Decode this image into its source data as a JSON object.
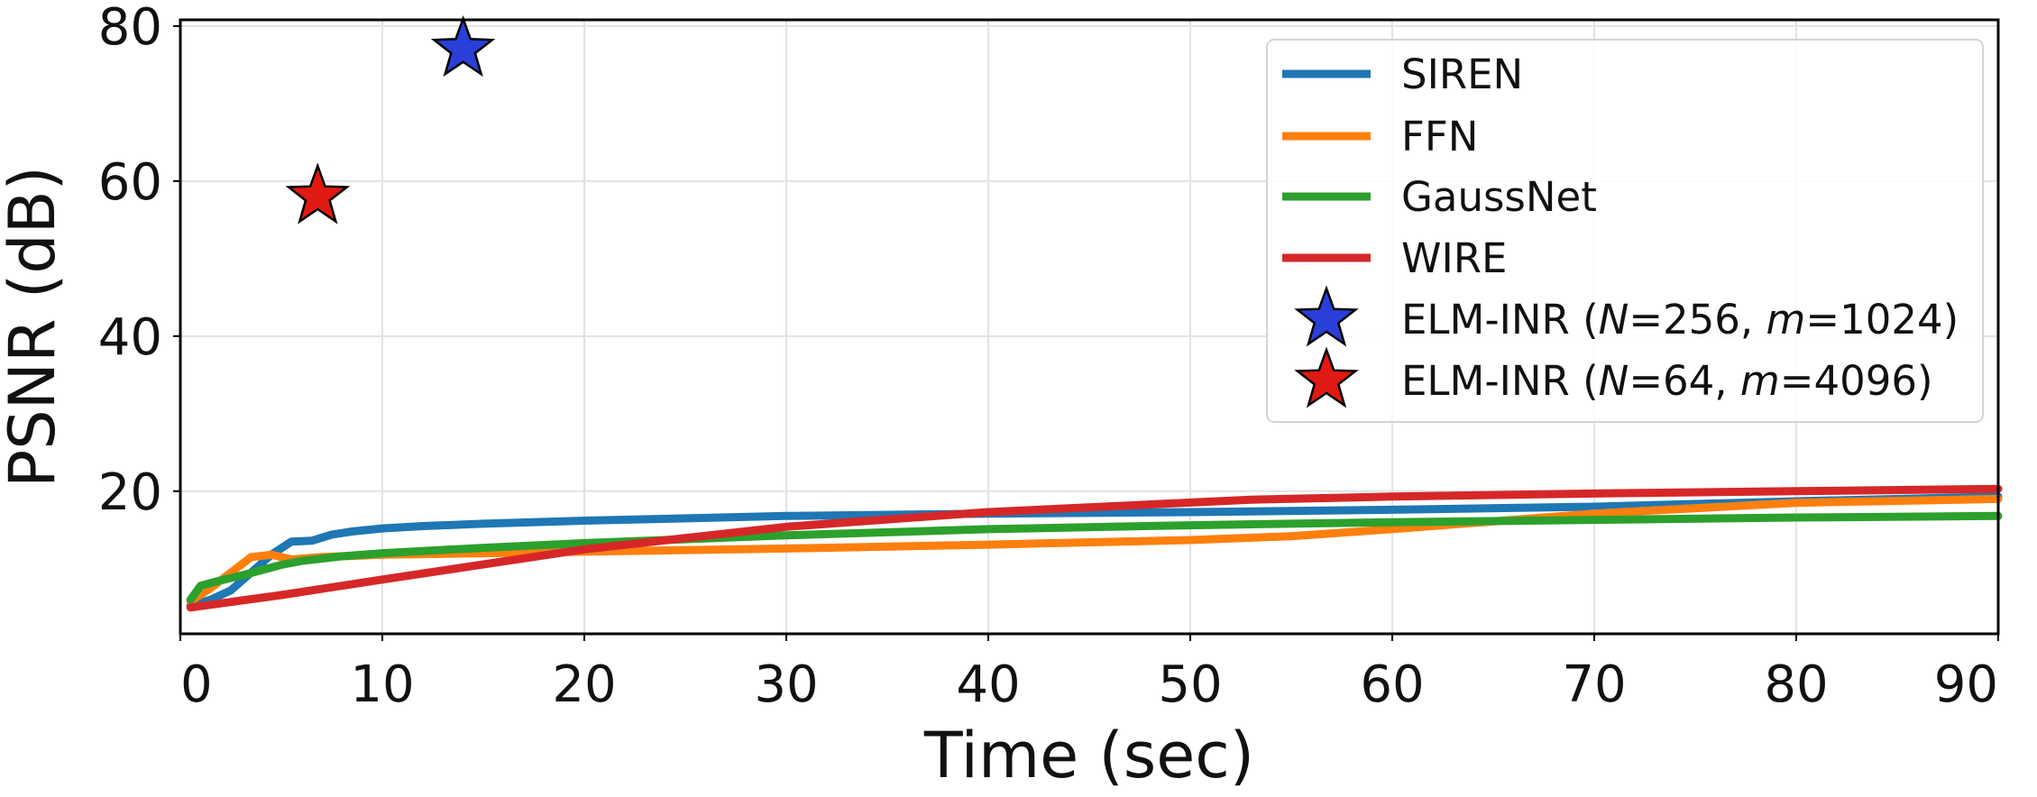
{
  "chart_data": {
    "type": "line",
    "xlabel": "Time (sec)",
    "ylabel": "PSNR (dB)",
    "xlim": [
      0,
      90
    ],
    "ylim": [
      1.6,
      80.8
    ],
    "xticks": [
      0,
      10,
      20,
      30,
      40,
      50,
      60,
      70,
      80,
      90
    ],
    "yticks": [
      20,
      40,
      60,
      80
    ],
    "grid": true,
    "legend_position": "top-right",
    "series": [
      {
        "name": "SIREN",
        "color": "#1f77b4",
        "x": [
          0.5,
          1.5,
          2.5,
          3.5,
          4.5,
          5.5,
          6.5,
          7.5,
          8.5,
          10,
          12,
          15,
          20,
          30,
          40,
          50,
          60,
          70,
          80,
          90
        ],
        "y": [
          5.2,
          6.0,
          7.2,
          9.5,
          11.8,
          13.5,
          13.6,
          14.4,
          14.8,
          15.2,
          15.5,
          15.8,
          16.2,
          16.8,
          17.1,
          17.3,
          17.6,
          18.0,
          18.7,
          19.3
        ]
      },
      {
        "name": "FFN",
        "color": "#ff7f0e",
        "x": [
          0.5,
          1.5,
          2.5,
          3.5,
          4.5,
          5.5,
          7,
          10,
          15,
          20,
          30,
          40,
          50,
          55,
          60,
          70,
          80,
          90
        ],
        "y": [
          5.8,
          7.5,
          9.5,
          11.5,
          11.8,
          11.2,
          11.5,
          11.8,
          12.0,
          12.2,
          12.6,
          13.1,
          13.7,
          14.2,
          15.1,
          17.1,
          18.5,
          19.0
        ]
      },
      {
        "name": "GaussNet",
        "color": "#2ca02c",
        "x": [
          0.5,
          1,
          2,
          3,
          4,
          5,
          6,
          8,
          10,
          15,
          20,
          30,
          40,
          50,
          60,
          70,
          80,
          90
        ],
        "y": [
          6.0,
          7.8,
          8.5,
          9.1,
          9.8,
          10.5,
          11.0,
          11.6,
          12.0,
          12.7,
          13.3,
          14.3,
          15.1,
          15.6,
          16.0,
          16.3,
          16.6,
          16.8
        ]
      },
      {
        "name": "WIRE",
        "color": "#d62728",
        "x": [
          0.5,
          5,
          10,
          20,
          30,
          40,
          53,
          60,
          70,
          80,
          90
        ],
        "y": [
          5.0,
          6.6,
          8.6,
          12.5,
          15.4,
          17.3,
          18.9,
          19.3,
          19.7,
          20.0,
          20.3
        ]
      }
    ],
    "points": [
      {
        "name": "ELM-INR (N=256, m=1024)",
        "legend_prefix": "ELM-INR (",
        "legend_n": "N",
        "legend_mid": "=256, ",
        "legend_m": "m",
        "legend_suffix": "=1024)",
        "x": 14,
        "y": 77.0,
        "color": "#2a3fd8"
      },
      {
        "name": "ELM-INR (N=64, m=4096)",
        "legend_prefix": "ELM-INR (",
        "legend_n": "N",
        "legend_mid": "=64, ",
        "legend_m": "m",
        "legend_suffix": "=4096)",
        "x": 6.8,
        "y": 58.0,
        "color": "#e01a12"
      }
    ]
  }
}
